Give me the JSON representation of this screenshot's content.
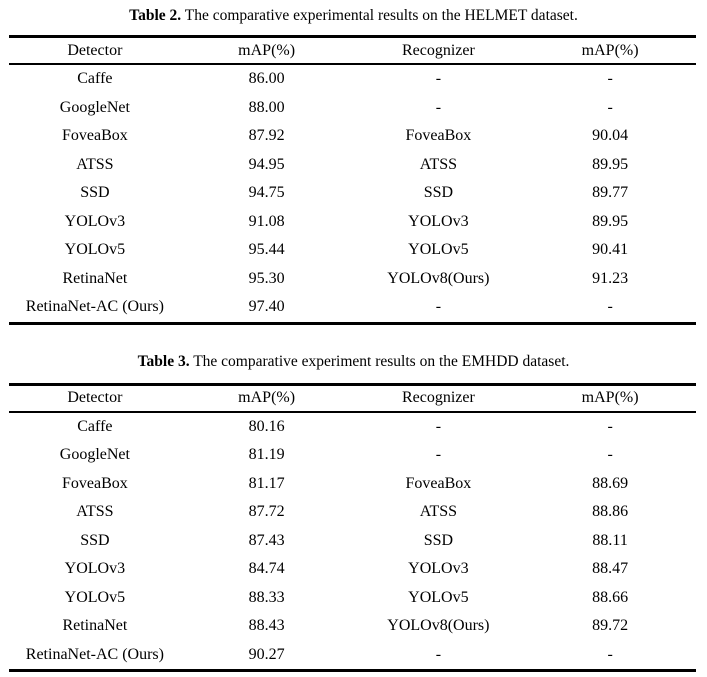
{
  "colors": {
    "background": "#ffffff",
    "text": "#000000",
    "rule": "#000000"
  },
  "tables": [
    {
      "caption_label": "Table 2.",
      "caption_text": " The comparative experimental results on the HELMET dataset.",
      "headers": [
        "Detector",
        "mAP(%)",
        "Recognizer",
        "mAP(%)"
      ],
      "rows": [
        [
          "Caffe",
          "86.00",
          "-",
          "-"
        ],
        [
          "GoogleNet",
          "88.00",
          "-",
          "-"
        ],
        [
          "FoveaBox",
          "87.92",
          "FoveaBox",
          "90.04"
        ],
        [
          "ATSS",
          "94.95",
          "ATSS",
          "89.95"
        ],
        [
          "SSD",
          "94.75",
          "SSD",
          "89.77"
        ],
        [
          "YOLOv3",
          "91.08",
          "YOLOv3",
          "89.95"
        ],
        [
          "YOLOv5",
          "95.44",
          "YOLOv5",
          "90.41"
        ],
        [
          "RetinaNet",
          "95.30",
          "YOLOv8(Ours)",
          "91.23"
        ],
        [
          "RetinaNet-AC (Ours)",
          "97.40",
          "-",
          "-"
        ]
      ]
    },
    {
      "caption_label": "Table 3.",
      "caption_text": " The comparative experiment results on the EMHDD dataset.",
      "headers": [
        "Detector",
        "mAP(%)",
        "Recognizer",
        "mAP(%)"
      ],
      "rows": [
        [
          "Caffe",
          "80.16",
          "-",
          "-"
        ],
        [
          "GoogleNet",
          "81.19",
          "-",
          "-"
        ],
        [
          "FoveaBox",
          "81.17",
          "FoveaBox",
          "88.69"
        ],
        [
          "ATSS",
          "87.72",
          "ATSS",
          "88.86"
        ],
        [
          "SSD",
          "87.43",
          "SSD",
          "88.11"
        ],
        [
          "YOLOv3",
          "84.74",
          "YOLOv3",
          "88.47"
        ],
        [
          "YOLOv5",
          "88.33",
          "YOLOv5",
          "88.66"
        ],
        [
          "RetinaNet",
          "88.43",
          "YOLOv8(Ours)",
          "89.72"
        ],
        [
          "RetinaNet-AC (Ours)",
          "90.27",
          "-",
          "-"
        ]
      ]
    }
  ]
}
